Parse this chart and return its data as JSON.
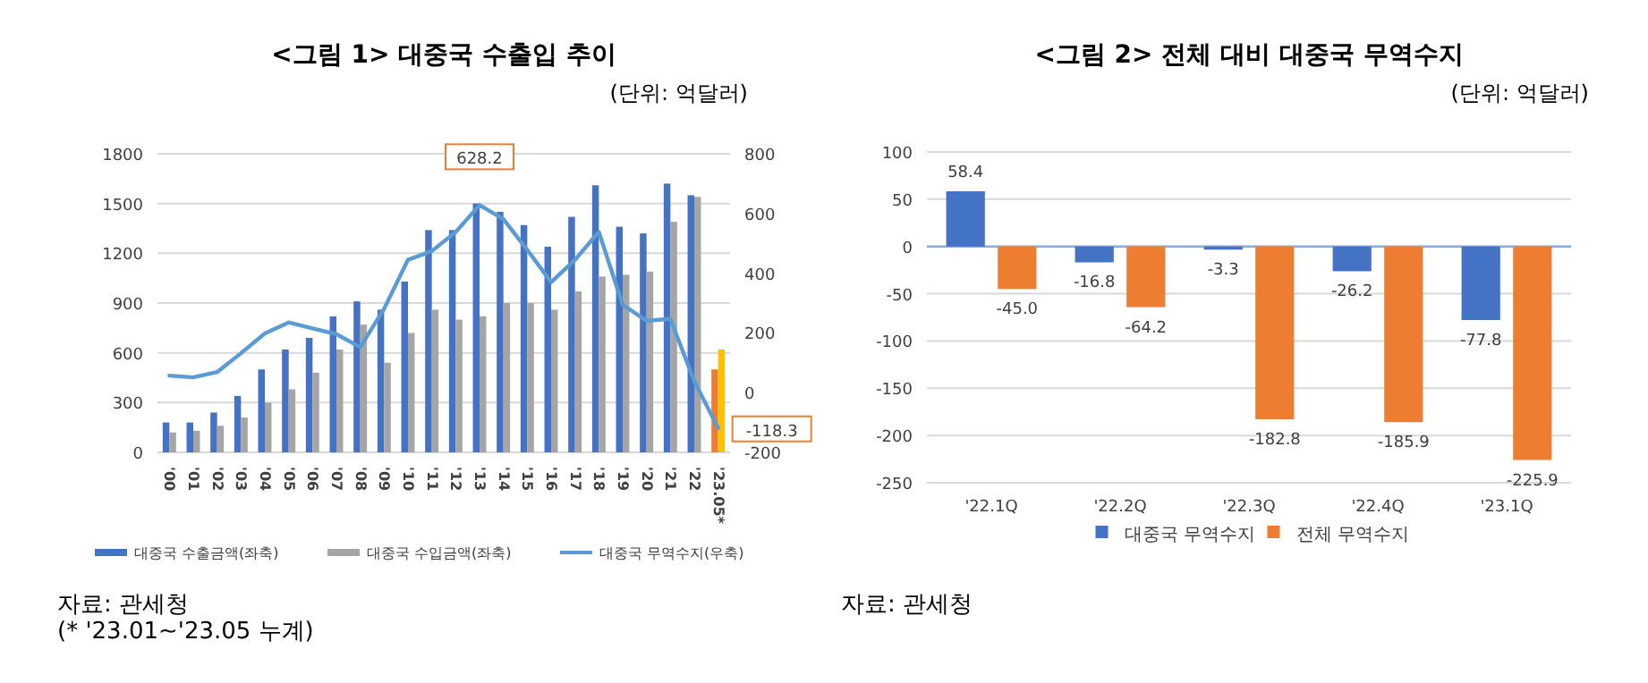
{
  "chart_data": [
    {
      "type": "bar",
      "title": "<그림 1> 대중국 수출입 추이",
      "subtitle": "(단위: 억달러)",
      "categories": [
        "'00",
        "'01",
        "'02",
        "'03",
        "'04",
        "'05",
        "'06",
        "'07",
        "'08",
        "'09",
        "'10",
        "'11",
        "'12",
        "'13",
        "'14",
        "'15",
        "'16",
        "'17",
        "'18",
        "'19",
        "'20",
        "'21",
        "'22",
        "'23.05*"
      ],
      "series": [
        {
          "name": "대중국 수출금액(좌축)",
          "color": "#4472c4",
          "colors": [
            "#4472c4",
            "#4472c4",
            "#4472c4",
            "#4472c4",
            "#4472c4",
            "#4472c4",
            "#4472c4",
            "#4472c4",
            "#4472c4",
            "#4472c4",
            "#4472c4",
            "#4472c4",
            "#4472c4",
            "#4472c4",
            "#4472c4",
            "#4472c4",
            "#4472c4",
            "#4472c4",
            "#4472c4",
            "#4472c4",
            "#4472c4",
            "#4472c4",
            "#4472c4",
            "#ed7d31"
          ],
          "values": [
            180,
            180,
            240,
            340,
            500,
            620,
            690,
            820,
            910,
            860,
            1030,
            1340,
            1340,
            1500,
            1450,
            1370,
            1240,
            1420,
            1610,
            1360,
            1320,
            1620,
            1550,
            500
          ]
        },
        {
          "name": "대중국 수입금액(좌축)",
          "color": "#a5a5a5",
          "colors": [
            "#a5a5a5",
            "#a5a5a5",
            "#a5a5a5",
            "#a5a5a5",
            "#a5a5a5",
            "#a5a5a5",
            "#a5a5a5",
            "#a5a5a5",
            "#a5a5a5",
            "#a5a5a5",
            "#a5a5a5",
            "#a5a5a5",
            "#a5a5a5",
            "#a5a5a5",
            "#a5a5a5",
            "#a5a5a5",
            "#a5a5a5",
            "#a5a5a5",
            "#a5a5a5",
            "#a5a5a5",
            "#a5a5a5",
            "#a5a5a5",
            "#a5a5a5",
            "#ffc000"
          ],
          "values": [
            120,
            130,
            160,
            210,
            300,
            380,
            480,
            620,
            770,
            540,
            720,
            860,
            800,
            820,
            900,
            900,
            860,
            970,
            1060,
            1070,
            1090,
            1390,
            1540,
            620
          ]
        },
        {
          "name": "대중국 무역수지(우축)",
          "type": "line",
          "axis": "y2",
          "color": "#5b9bd5",
          "values": [
            57,
            51,
            69,
            132,
            198,
            235,
            215,
            196,
            152,
            281,
            445,
            474,
            538,
            628.2,
            581,
            478,
            370,
            445,
            538,
            294,
            241,
            247,
            38,
            -118.3
          ],
          "value_labels": [
            null,
            null,
            null,
            null,
            null,
            null,
            null,
            null,
            null,
            null,
            null,
            null,
            null,
            "628.2",
            null,
            null,
            null,
            null,
            null,
            null,
            null,
            null,
            null,
            "-118.3"
          ]
        }
      ],
      "ylim": [
        0,
        1800
      ],
      "yticks": [
        0,
        300,
        600,
        900,
        1200,
        1500,
        1800
      ],
      "y2lim": [
        -200,
        800
      ],
      "y2ticks": [
        -200,
        0,
        200,
        400,
        600,
        800
      ],
      "grid": "y",
      "legend": "bottom",
      "annotations": [
        "자료: 관세청",
        "(* '23.01~'23.05 누계)"
      ]
    },
    {
      "type": "bar",
      "title": "<그림 2> 전체 대비 대중국 무역수지",
      "subtitle": "(단위: 억달러)",
      "categories": [
        "'22.1Q",
        "'22.2Q",
        "'22.3Q",
        "'22.4Q",
        "'23.1Q"
      ],
      "series": [
        {
          "name": "대중국 무역수지",
          "color": "#4472c4",
          "values": [
            58.4,
            -16.8,
            -3.3,
            -26.2,
            -77.8
          ],
          "value_labels": [
            "58.4",
            "-16.8",
            "-3.3",
            "-26.2",
            "-77.8"
          ]
        },
        {
          "name": "전체 무역수지",
          "color": "#ed7d31",
          "values": [
            -45.0,
            -64.2,
            -182.8,
            -185.9,
            -225.9
          ],
          "value_labels": [
            "-45.0",
            "-64.2",
            "-182.8",
            "-185.9",
            "-225.9"
          ]
        }
      ],
      "ylim": [
        -250,
        100
      ],
      "yticks": [
        -250,
        -200,
        -150,
        -100,
        -50,
        0,
        50,
        100
      ],
      "ref_lines": [
        {
          "axis": "y",
          "value": 0,
          "color": "#8faadc"
        }
      ],
      "grid": "y",
      "legend": "bottom",
      "annotations": [
        "자료: 관세청"
      ]
    }
  ]
}
